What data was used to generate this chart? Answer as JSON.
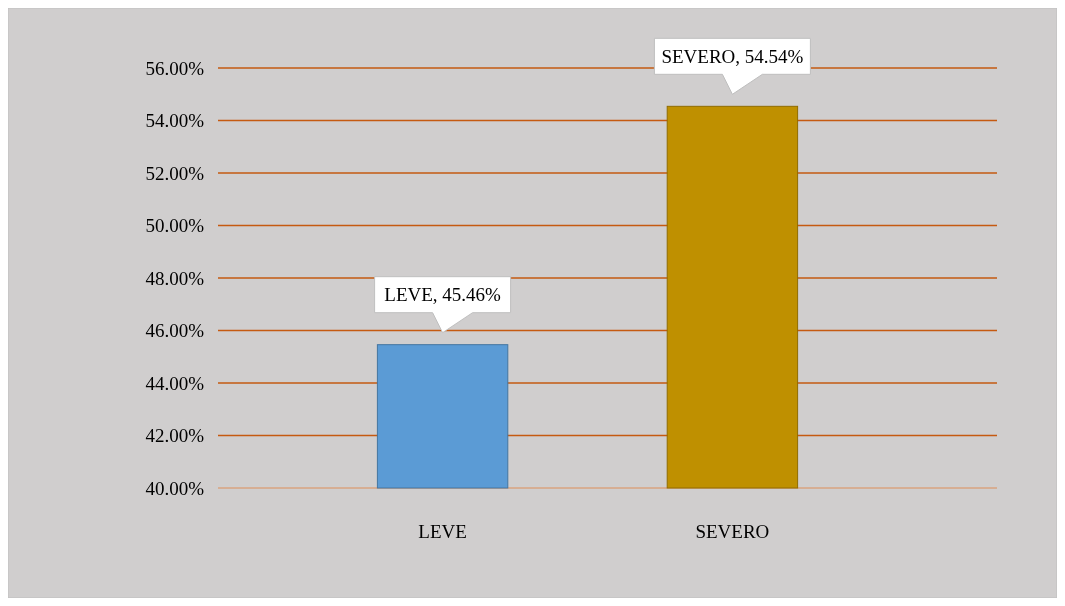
{
  "chart_data": {
    "type": "bar",
    "categories": [
      "LEVE",
      "SEVERO"
    ],
    "values": [
      45.46,
      54.54
    ],
    "colors": [
      "#5b9bd5",
      "#bf9000"
    ],
    "value_labels": [
      "LEVE, 45.46%",
      "SEVERO, 54.54%"
    ],
    "ylim": [
      40,
      56
    ],
    "yticks": [
      {
        "value": 40,
        "label": "40.00%"
      },
      {
        "value": 42,
        "label": "42.00%"
      },
      {
        "value": 44,
        "label": "44.00%"
      },
      {
        "value": 46,
        "label": "46.00%"
      },
      {
        "value": 48,
        "label": "48.00%"
      },
      {
        "value": 50,
        "label": "50.00%"
      },
      {
        "value": 52,
        "label": "52.00%"
      },
      {
        "value": 54,
        "label": "54.00%"
      },
      {
        "value": 56,
        "label": "56.00%"
      }
    ],
    "grid": "y"
  }
}
